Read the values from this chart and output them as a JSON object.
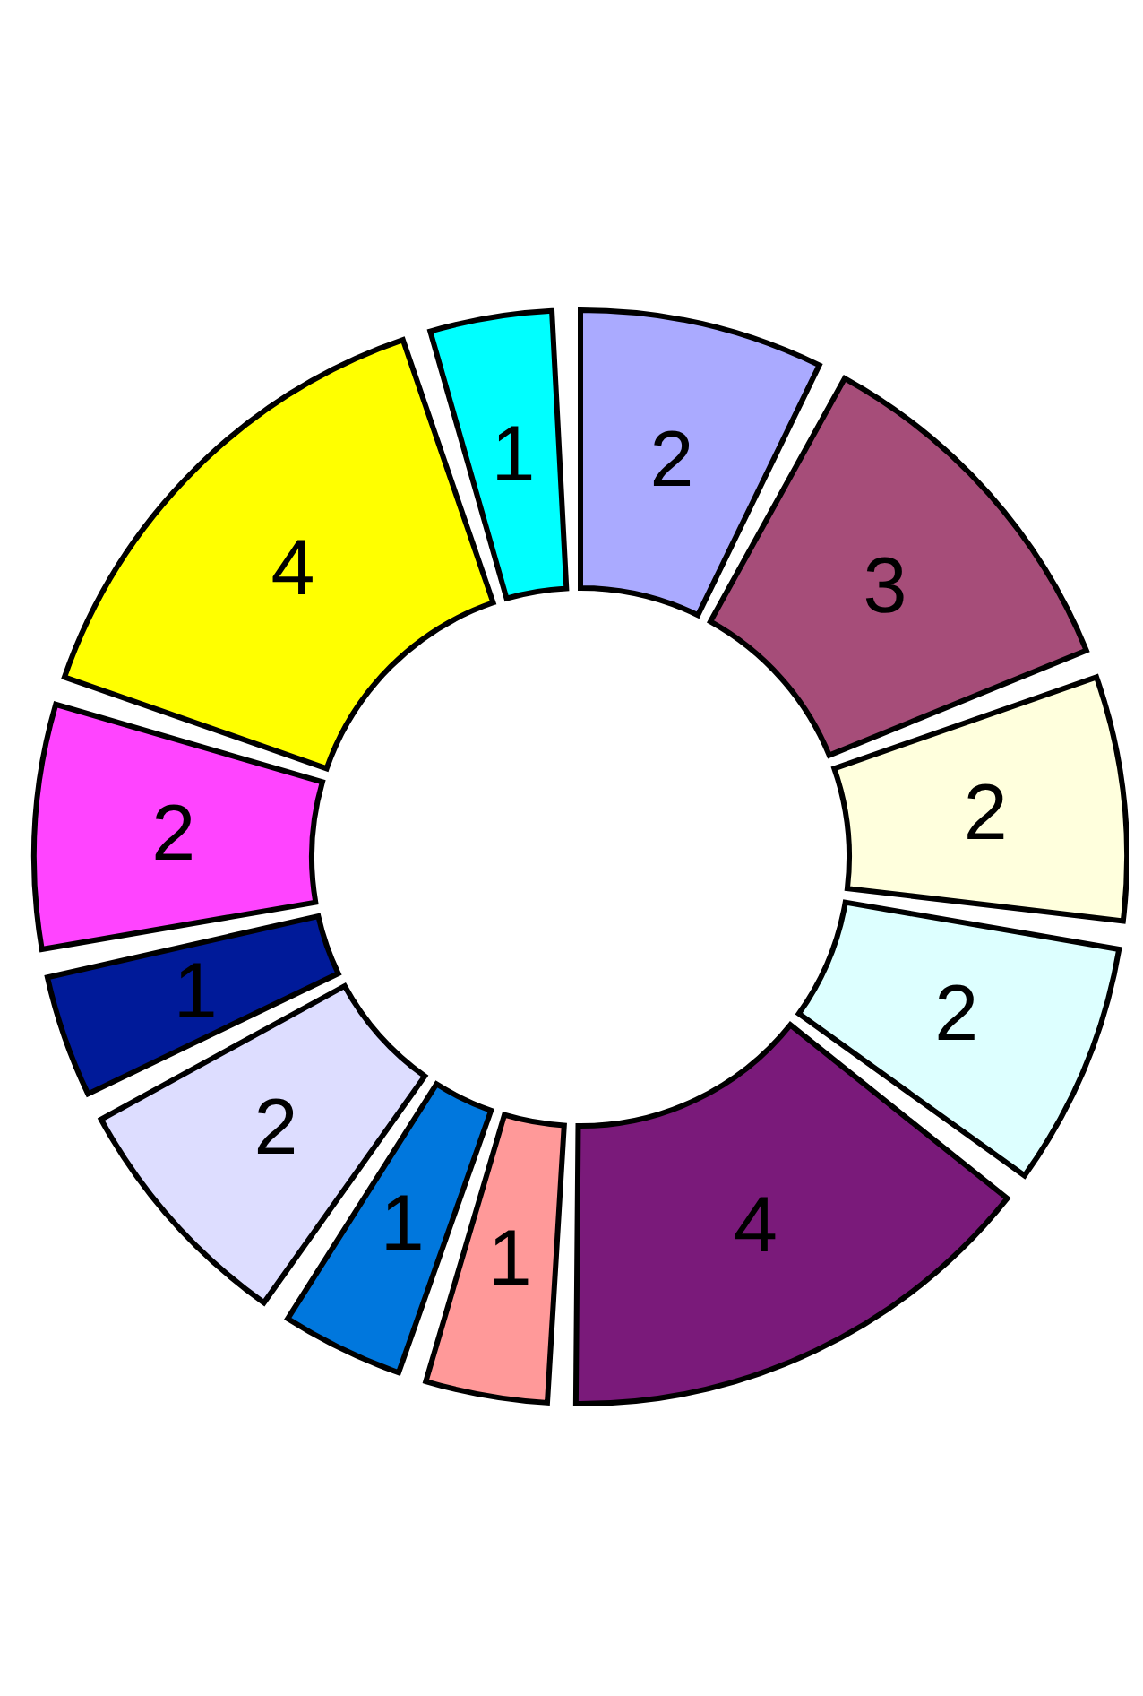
{
  "chart_data": {
    "type": "donut",
    "categories": [
      null,
      null,
      null,
      null,
      null,
      null,
      null,
      null,
      null,
      null,
      null,
      null
    ],
    "values": [
      2,
      3,
      2,
      2,
      4,
      1,
      1,
      2,
      1,
      2,
      4,
      1
    ],
    "colors": [
      "#aaaaff",
      "#a64d79",
      "#ffffdd",
      "#ddffff",
      "#7a1a7a",
      "#ff9999",
      "#0077dd",
      "#ddddff",
      "#001a99",
      "#ff44ff",
      "#ffff00",
      "#00ffff"
    ],
    "data_labels": true,
    "legend": false
  }
}
